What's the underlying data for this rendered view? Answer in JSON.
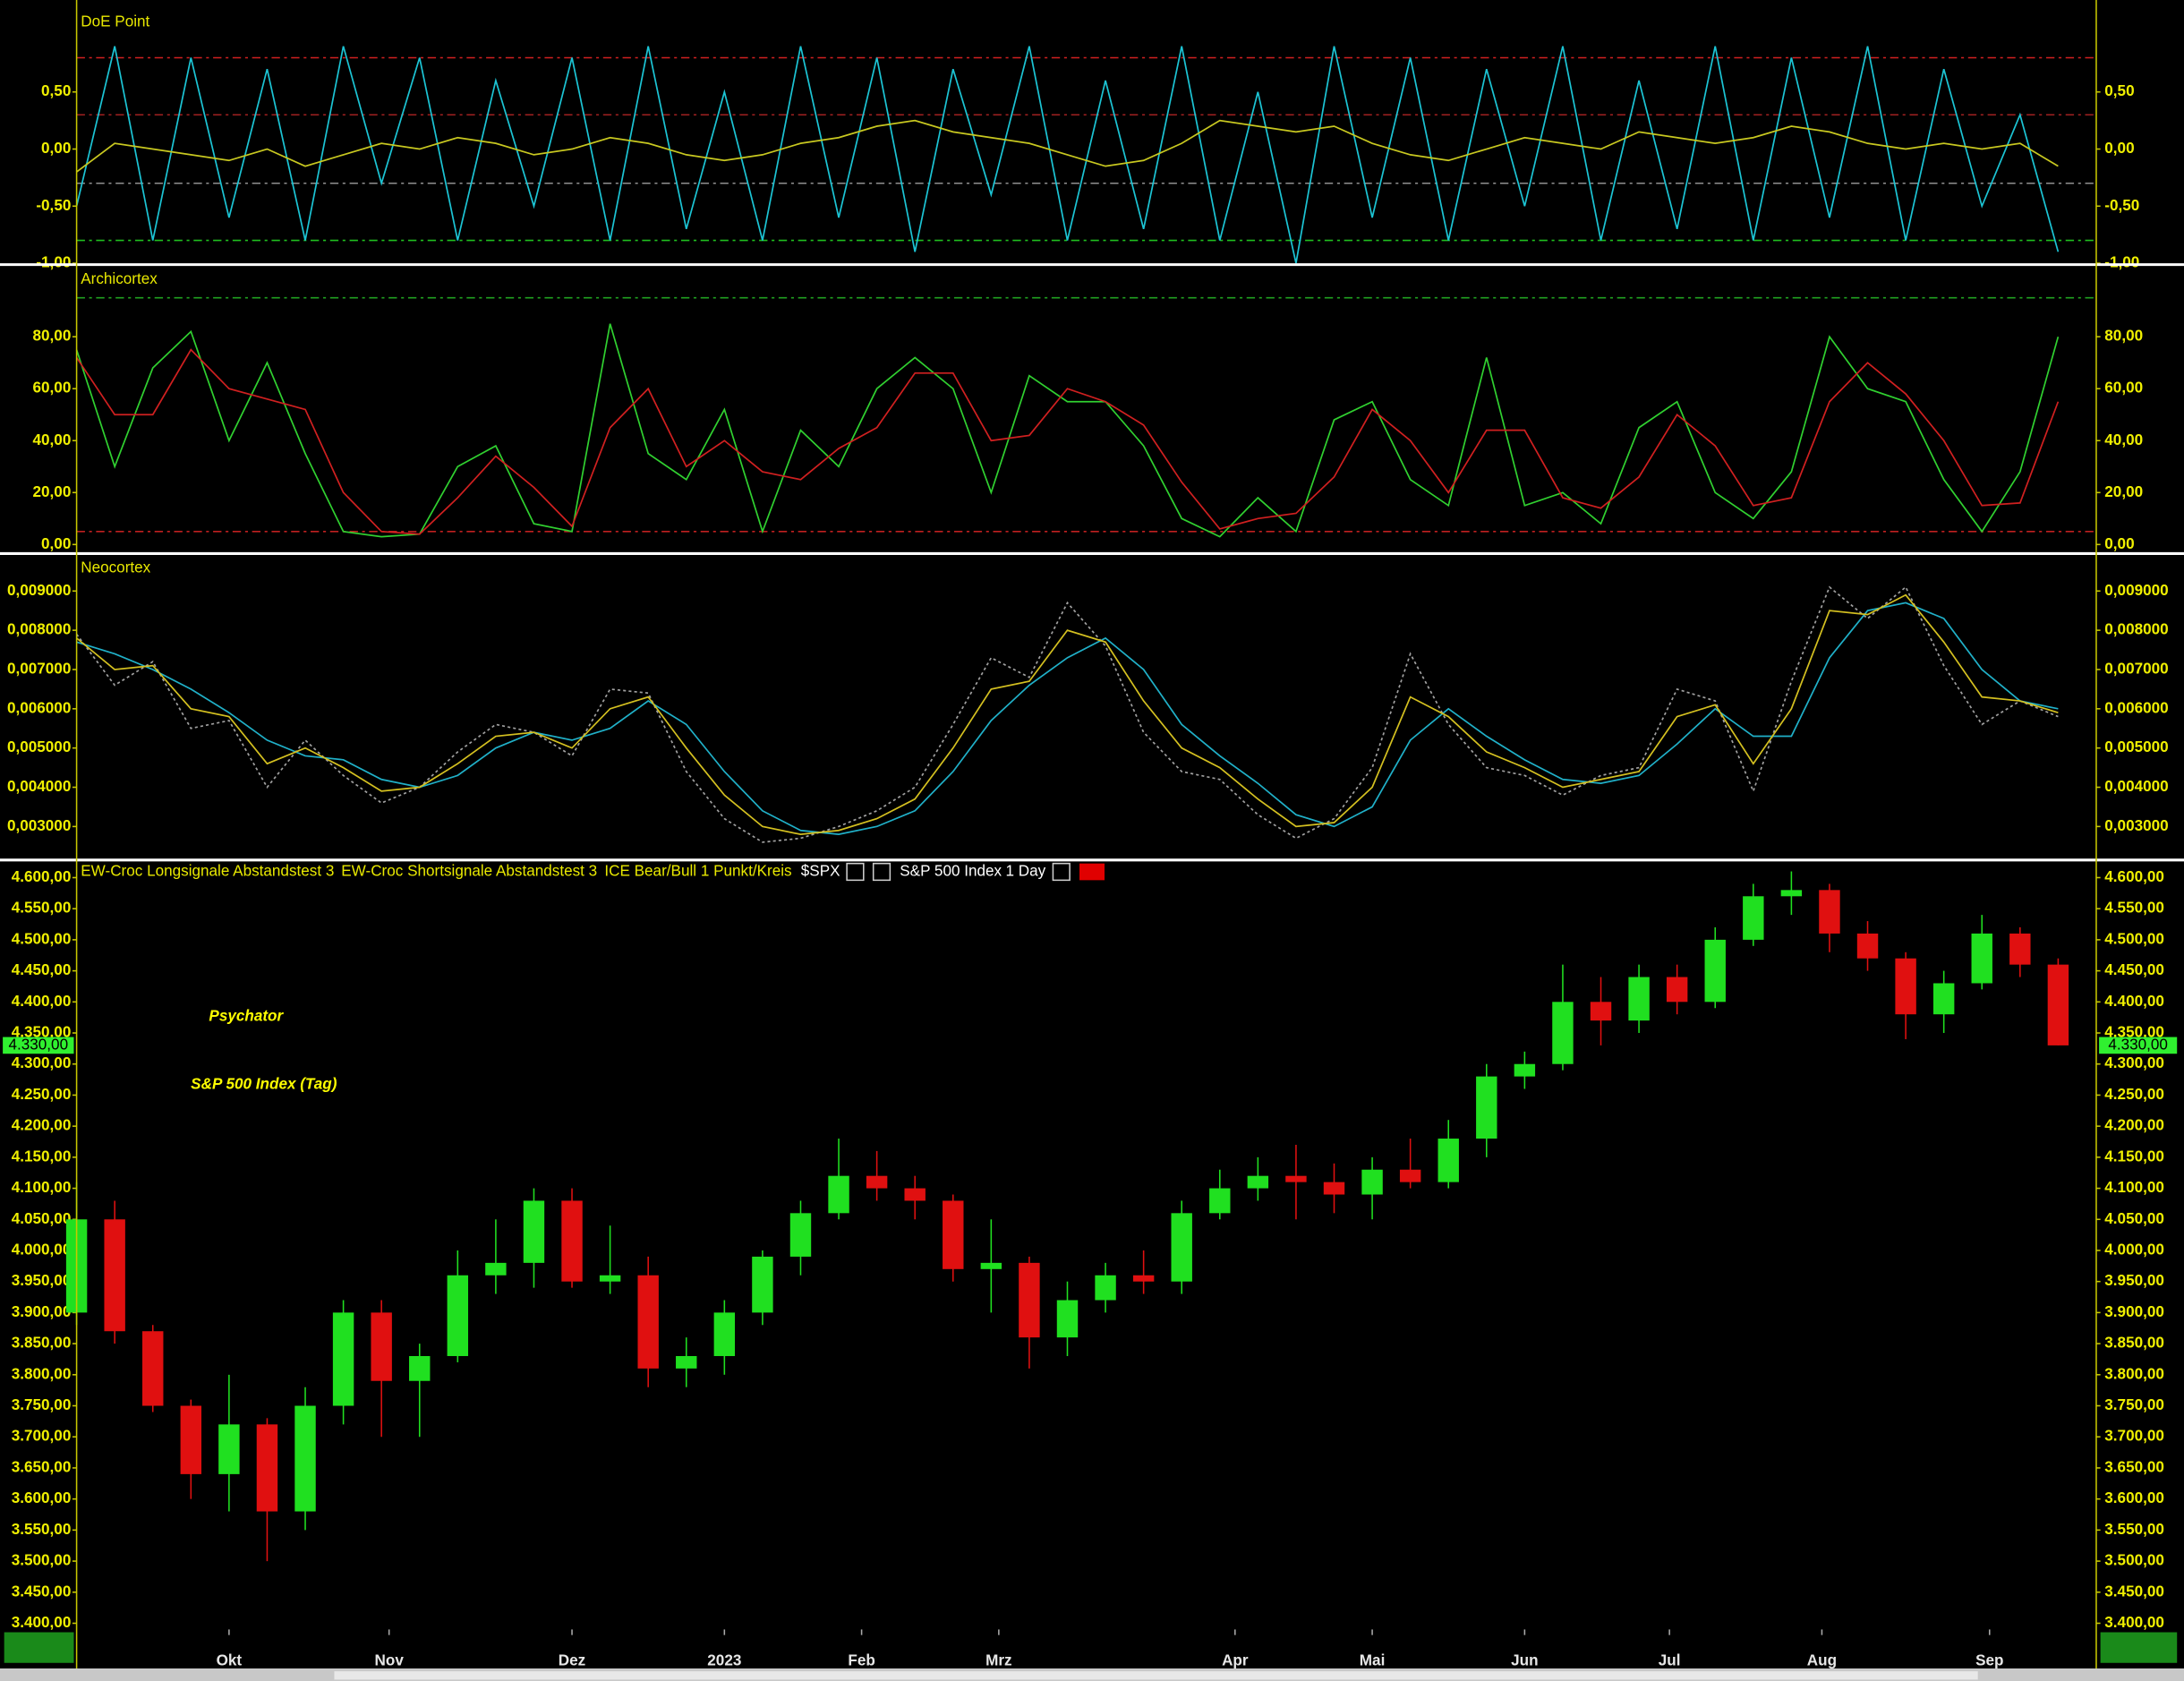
{
  "chart_data": [
    {
      "type": "line",
      "title": "DoE Point",
      "x": [
        0,
        5,
        10,
        15,
        20,
        25,
        30,
        35,
        40,
        45,
        50,
        55,
        60,
        65,
        70,
        75,
        80,
        85,
        90,
        95,
        100,
        105,
        110,
        115,
        120,
        125,
        130,
        135,
        140,
        145,
        150,
        155,
        160,
        165,
        170,
        175,
        180,
        185,
        190,
        195,
        200,
        205,
        210,
        215,
        220,
        225,
        230,
        235,
        240,
        245,
        250,
        255,
        260
      ],
      "xlim": [
        0,
        265
      ],
      "ylim": [
        -1,
        1.22
      ],
      "yticks": [
        {
          "value": 0.5,
          "label": "0,50"
        },
        {
          "value": 0,
          "label": "0,00"
        },
        {
          "value": -0.5,
          "label": "-0,50"
        },
        {
          "value": -1,
          "label": "-1,00"
        }
      ],
      "levels": [
        {
          "value": 0.8,
          "color": "#d02020"
        },
        {
          "value": 0.3,
          "color": "#a02020"
        },
        {
          "value": -0.3,
          "color": "#909090"
        },
        {
          "value": -0.8,
          "color": "#20c020"
        }
      ],
      "series": [
        {
          "color": "#1cc4d4",
          "values": [
            -0.5,
            0.9,
            -0.8,
            0.8,
            -0.6,
            0.7,
            -0.8,
            0.9,
            -0.3,
            0.8,
            -0.8,
            0.6,
            -0.5,
            0.8,
            -0.8,
            0.9,
            -0.7,
            0.5,
            -0.8,
            0.9,
            -0.6,
            0.8,
            -0.9,
            0.7,
            -0.4,
            0.9,
            -0.8,
            0.6,
            -0.7,
            0.9,
            -0.8,
            0.5,
            -1.0,
            0.9,
            -0.6,
            0.8,
            -0.8,
            0.7,
            -0.5,
            0.9,
            -0.8,
            0.6,
            -0.7,
            0.9,
            -0.8,
            0.8,
            -0.6,
            0.9,
            -0.8,
            0.7,
            -0.5,
            0.3,
            -0.9
          ]
        },
        {
          "color": "#c8c820",
          "values": [
            -0.2,
            0.05,
            0.0,
            -0.05,
            -0.1,
            0.0,
            -0.15,
            -0.05,
            0.05,
            0.0,
            0.1,
            0.05,
            -0.05,
            0.0,
            0.1,
            0.05,
            -0.05,
            -0.1,
            -0.05,
            0.05,
            0.1,
            0.2,
            0.25,
            0.15,
            0.1,
            0.05,
            -0.05,
            -0.15,
            -0.1,
            0.05,
            0.25,
            0.2,
            0.15,
            0.2,
            0.05,
            -0.05,
            -0.1,
            0.0,
            0.1,
            0.05,
            0.0,
            0.15,
            0.1,
            0.05,
            0.1,
            0.2,
            0.15,
            0.05,
            0.0,
            0.05,
            0.0,
            0.05,
            -0.15
          ]
        }
      ]
    },
    {
      "type": "line",
      "title": "Archicortex",
      "x": [
        0,
        5,
        10,
        15,
        20,
        25,
        30,
        35,
        40,
        45,
        50,
        55,
        60,
        65,
        70,
        75,
        80,
        85,
        90,
        95,
        100,
        105,
        110,
        115,
        120,
        125,
        130,
        135,
        140,
        145,
        150,
        155,
        160,
        165,
        170,
        175,
        180,
        185,
        190,
        195,
        200,
        205,
        210,
        215,
        220,
        225,
        230,
        235,
        240,
        245,
        250,
        255,
        260
      ],
      "xlim": [
        0,
        265
      ],
      "ylim": [
        -2.7,
        106.7
      ],
      "yticks": [
        {
          "value": 80,
          "label": "80,00"
        },
        {
          "value": 60,
          "label": "60,00"
        },
        {
          "value": 40,
          "label": "40,00"
        },
        {
          "value": 20,
          "label": "20,00"
        },
        {
          "value": 0,
          "label": "0,00"
        }
      ],
      "levels": [
        {
          "value": 95,
          "color": "#20a020"
        },
        {
          "value": 5,
          "color": "#c02020"
        }
      ],
      "series": [
        {
          "color": "#30d030",
          "values": [
            75,
            30,
            68,
            82,
            40,
            70,
            35,
            5,
            3,
            4,
            30,
            38,
            8,
            5,
            85,
            35,
            25,
            52,
            5,
            44,
            30,
            60,
            72,
            60,
            20,
            65,
            55,
            55,
            38,
            10,
            3,
            18,
            5,
            48,
            55,
            25,
            15,
            72,
            15,
            20,
            8,
            45,
            55,
            20,
            10,
            28,
            80,
            60,
            55,
            25,
            5,
            28,
            80
          ]
        },
        {
          "color": "#d02020",
          "values": [
            72,
            50,
            50,
            75,
            60,
            56,
            52,
            20,
            5,
            4,
            18,
            34,
            22,
            7,
            45,
            60,
            30,
            40,
            28,
            25,
            37,
            45,
            66,
            66,
            40,
            42,
            60,
            55,
            46,
            24,
            6,
            10,
            12,
            26,
            52,
            40,
            20,
            44,
            44,
            18,
            14,
            26,
            50,
            38,
            15,
            18,
            55,
            70,
            58,
            40,
            15,
            16,
            55
          ]
        }
      ]
    },
    {
      "type": "line",
      "title": "Neocortex",
      "x": [
        0,
        5,
        10,
        15,
        20,
        25,
        30,
        35,
        40,
        45,
        50,
        55,
        60,
        65,
        70,
        75,
        80,
        85,
        90,
        95,
        100,
        105,
        110,
        115,
        120,
        125,
        130,
        135,
        140,
        145,
        150,
        155,
        160,
        165,
        170,
        175,
        180,
        185,
        190,
        195,
        200,
        205,
        210,
        215,
        220,
        225,
        230,
        235,
        240,
        245,
        250,
        255,
        260
      ],
      "xlim": [
        0,
        265
      ],
      "ylim": [
        0.0022,
        0.0099
      ],
      "yticks": [
        {
          "value": 0.009,
          "label": "0,009000"
        },
        {
          "value": 0.008,
          "label": "0,008000"
        },
        {
          "value": 0.007,
          "label": "0,007000"
        },
        {
          "value": 0.006,
          "label": "0,006000"
        },
        {
          "value": 0.005,
          "label": "0,005000"
        },
        {
          "value": 0.004,
          "label": "0,004000"
        },
        {
          "value": 0.003,
          "label": "0,003000"
        }
      ],
      "series": [
        {
          "color": "#a0a0a0",
          "style": "dotted",
          "values": [
            0.0079,
            0.0066,
            0.0072,
            0.0055,
            0.0057,
            0.004,
            0.0052,
            0.0043,
            0.0036,
            0.004,
            0.0049,
            0.0056,
            0.0054,
            0.0048,
            0.0065,
            0.0064,
            0.0044,
            0.0032,
            0.0026,
            0.0027,
            0.003,
            0.0034,
            0.004,
            0.0056,
            0.0073,
            0.0068,
            0.0087,
            0.0076,
            0.0054,
            0.0044,
            0.0042,
            0.0033,
            0.0027,
            0.0032,
            0.0045,
            0.0074,
            0.0056,
            0.0045,
            0.0043,
            0.0038,
            0.0043,
            0.0045,
            0.0065,
            0.0062,
            0.0039,
            0.0067,
            0.0091,
            0.0083,
            0.0091,
            0.0071,
            0.0056,
            0.0062,
            0.0058
          ]
        },
        {
          "color": "#20b0c8",
          "values": [
            0.0077,
            0.0074,
            0.007,
            0.0065,
            0.0059,
            0.0052,
            0.0048,
            0.0047,
            0.0042,
            0.004,
            0.0043,
            0.005,
            0.0054,
            0.0052,
            0.0055,
            0.0062,
            0.0056,
            0.0044,
            0.0034,
            0.0029,
            0.0028,
            0.003,
            0.0034,
            0.0044,
            0.0057,
            0.0066,
            0.0073,
            0.0078,
            0.007,
            0.0056,
            0.0048,
            0.0041,
            0.0033,
            0.003,
            0.0035,
            0.0052,
            0.006,
            0.0053,
            0.0047,
            0.0042,
            0.0041,
            0.0043,
            0.0051,
            0.006,
            0.0053,
            0.0053,
            0.0073,
            0.0085,
            0.0087,
            0.0083,
            0.007,
            0.0062,
            0.006
          ]
        },
        {
          "color": "#d4c020",
          "values": [
            0.0078,
            0.007,
            0.0071,
            0.006,
            0.0058,
            0.0046,
            0.005,
            0.0045,
            0.0039,
            0.004,
            0.0046,
            0.0053,
            0.0054,
            0.005,
            0.006,
            0.0063,
            0.005,
            0.0038,
            0.003,
            0.0028,
            0.0029,
            0.0032,
            0.0037,
            0.005,
            0.0065,
            0.0067,
            0.008,
            0.0077,
            0.0062,
            0.005,
            0.0045,
            0.0037,
            0.003,
            0.0031,
            0.004,
            0.0063,
            0.0058,
            0.0049,
            0.0045,
            0.004,
            0.0042,
            0.0044,
            0.0058,
            0.0061,
            0.0046,
            0.006,
            0.0085,
            0.0084,
            0.0089,
            0.0077,
            0.0063,
            0.0062,
            0.0059
          ]
        }
      ]
    },
    {
      "type": "candlestick",
      "title": "Psychator",
      "subtitle": "S&P 500 Index (Tag)",
      "header": [
        "EW-Croc Longsignale Abstandstest 3",
        "EW-Croc Shortsignale Abstandstest 3",
        "ICE Bear/Bull 1 Punkt/Kreis",
        "$SPX",
        "S&P 500 Index",
        "1 Day"
      ],
      "x": [
        0,
        5,
        10,
        15,
        20,
        25,
        30,
        35,
        40,
        45,
        50,
        55,
        60,
        65,
        70,
        75,
        80,
        85,
        90,
        95,
        100,
        105,
        110,
        115,
        120,
        125,
        130,
        135,
        140,
        145,
        150,
        155,
        160,
        165,
        170,
        175,
        180,
        185,
        190,
        195,
        200,
        205,
        210,
        215,
        220,
        225,
        230,
        235,
        240,
        245,
        250,
        255,
        260
      ],
      "xlim": [
        0,
        265
      ],
      "ylim": [
        3390,
        4625
      ],
      "xticks": [
        {
          "value": 20,
          "label": "Okt"
        },
        {
          "value": 41,
          "label": "Nov"
        },
        {
          "value": 65,
          "label": "Dez"
        },
        {
          "value": 85,
          "label": "2023"
        },
        {
          "value": 103,
          "label": "Feb"
        },
        {
          "value": 121,
          "label": "Mrz"
        },
        {
          "value": 152,
          "label": "Apr"
        },
        {
          "value": 170,
          "label": "Mai"
        },
        {
          "value": 190,
          "label": "Jun"
        },
        {
          "value": 209,
          "label": "Jul"
        },
        {
          "value": 229,
          "label": "Aug"
        },
        {
          "value": 251,
          "label": "Sep"
        }
      ],
      "yticks": [
        {
          "value": 4600,
          "label": "4.600,00"
        },
        {
          "value": 4550,
          "label": "4.550,00"
        },
        {
          "value": 4500,
          "label": "4.500,00"
        },
        {
          "value": 4450,
          "label": "4.450,00"
        },
        {
          "value": 4400,
          "label": "4.400,00"
        },
        {
          "value": 4350,
          "label": "4.350,00"
        },
        {
          "value": 4300,
          "label": "4.300,00"
        },
        {
          "value": 4250,
          "label": "4.250,00"
        },
        {
          "value": 4200,
          "label": "4.200,00"
        },
        {
          "value": 4150,
          "label": "4.150,00"
        },
        {
          "value": 4100,
          "label": "4.100,00"
        },
        {
          "value": 4050,
          "label": "4.050,00"
        },
        {
          "value": 4000,
          "label": "4.000,00"
        },
        {
          "value": 3950,
          "label": "3.950,00"
        },
        {
          "value": 3900,
          "label": "3.900,00"
        },
        {
          "value": 3850,
          "label": "3.850,00"
        },
        {
          "value": 3800,
          "label": "3.800,00"
        },
        {
          "value": 3750,
          "label": "3.750,00"
        },
        {
          "value": 3700,
          "label": "3.700,00"
        },
        {
          "value": 3650,
          "label": "3.650,00"
        },
        {
          "value": 3600,
          "label": "3.600,00"
        },
        {
          "value": 3550,
          "label": "3.550,00"
        },
        {
          "value": 3500,
          "label": "3.500,00"
        },
        {
          "value": 3450,
          "label": "3.450,00"
        },
        {
          "value": 3400,
          "label": "3.400,00"
        }
      ],
      "last_price": {
        "value": 4330,
        "label": "4.330,00"
      },
      "up_color": "#20e020",
      "down_color": "#e01010",
      "open": [
        3900,
        4050,
        3870,
        3750,
        3640,
        3720,
        3580,
        3750,
        3900,
        3790,
        3830,
        3960,
        3980,
        4080,
        3950,
        3960,
        3810,
        3830,
        3900,
        3990,
        4060,
        4120,
        4100,
        4080,
        3970,
        3980,
        3860,
        3920,
        3960,
        3950,
        4060,
        4100,
        4120,
        4110,
        4090,
        4130,
        4110,
        4180,
        4280,
        4300,
        4400,
        4370,
        4440,
        4400,
        4500,
        4570,
        4580,
        4510,
        4470,
        4380,
        4430,
        4510,
        4460
      ],
      "high": [
        4110,
        4080,
        3880,
        3760,
        3800,
        3730,
        3780,
        3920,
        3920,
        3850,
        4000,
        4050,
        4100,
        4100,
        4040,
        3990,
        3860,
        3920,
        4000,
        4080,
        4180,
        4160,
        4120,
        4090,
        4050,
        3990,
        3950,
        3980,
        4000,
        4080,
        4130,
        4150,
        4170,
        4140,
        4150,
        4180,
        4210,
        4300,
        4320,
        4460,
        4440,
        4460,
        4460,
        4520,
        4590,
        4610,
        4590,
        4530,
        4480,
        4450,
        4540,
        4520,
        4470
      ],
      "low": [
        3880,
        3850,
        3740,
        3600,
        3580,
        3500,
        3550,
        3720,
        3700,
        3700,
        3820,
        3930,
        3940,
        3940,
        3930,
        3780,
        3780,
        3800,
        3880,
        3960,
        4050,
        4080,
        4050,
        3950,
        3900,
        3810,
        3830,
        3900,
        3930,
        3930,
        4050,
        4080,
        4050,
        4060,
        4050,
        4100,
        4100,
        4150,
        4260,
        4290,
        4330,
        4350,
        4380,
        4390,
        4490,
        4540,
        4480,
        4450,
        4340,
        4350,
        4420,
        4440,
        4330
      ],
      "close": [
        4050,
        3870,
        3750,
        3640,
        3720,
        3580,
        3750,
        3900,
        3790,
        3830,
        3960,
        3980,
        4080,
        3950,
        3960,
        3810,
        3830,
        3900,
        3990,
        4060,
        4120,
        4100,
        4080,
        3970,
        3980,
        3860,
        3920,
        3960,
        3950,
        4060,
        4100,
        4120,
        4110,
        4090,
        4130,
        4110,
        4180,
        4280,
        4300,
        4400,
        4370,
        4440,
        4400,
        4500,
        4570,
        4580,
        4510,
        4470,
        4380,
        4430,
        4510,
        4460,
        4330
      ]
    }
  ]
}
